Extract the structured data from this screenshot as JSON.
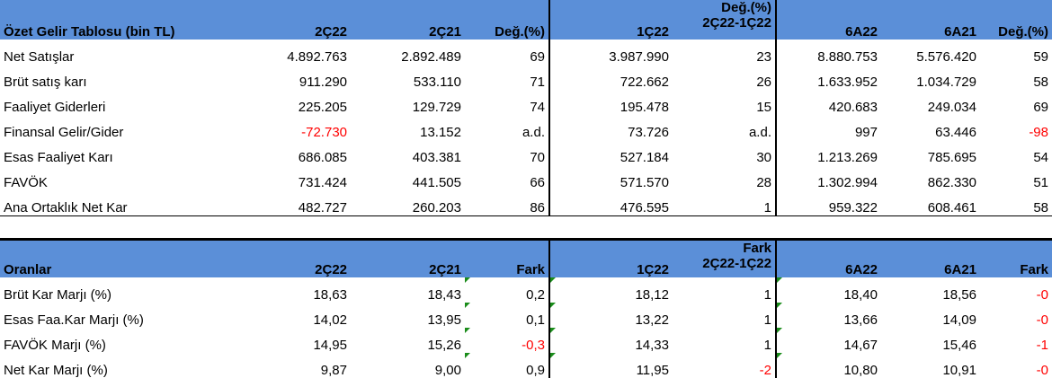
{
  "table1": {
    "headers": [
      "Özet Gelir Tablosu (bin TL)",
      "2Ç22",
      "2Ç21",
      "Değ.(%)",
      "1Ç22",
      "Değ.(%)|2Ç22-1Ç22",
      "6A22",
      "6A21",
      "Değ.(%)"
    ],
    "rows": [
      [
        "Net Satışlar",
        "4.892.763",
        "2.892.489",
        "69",
        "3.987.990",
        "23",
        "8.880.753",
        "5.576.420",
        "59"
      ],
      [
        "Brüt satış karı",
        "911.290",
        "533.110",
        "71",
        "722.662",
        "26",
        "1.633.952",
        "1.034.729",
        "58"
      ],
      [
        "Faaliyet Giderleri",
        "225.205",
        "129.729",
        "74",
        "195.478",
        "15",
        "420.683",
        "249.034",
        "69"
      ],
      [
        "Finansal Gelir/Gider",
        "-72.730",
        "13.152",
        "a.d.",
        "73.726",
        "a.d.",
        "997",
        "63.446",
        "-98"
      ],
      [
        "Esas Faaliyet Karı",
        "686.085",
        "403.381",
        "70",
        "527.184",
        "30",
        "1.213.269",
        "785.695",
        "54"
      ],
      [
        "FAVÖK",
        "731.424",
        "441.505",
        "66",
        "571.570",
        "28",
        "1.302.994",
        "862.330",
        "51"
      ],
      [
        "Ana Ortaklık Net Kar",
        "482.727",
        "260.203",
        "86",
        "476.595",
        "1",
        "959.322",
        "608.461",
        "58"
      ]
    ]
  },
  "table2": {
    "headers": [
      "Oranlar",
      "2Ç22",
      "2Ç21",
      "Fark",
      "1Ç22",
      "Fark|2Ç22-1Ç22",
      "6A22",
      "6A21",
      "Fark"
    ],
    "rows": [
      [
        "Brüt Kar Marjı (%)",
        "18,63",
        "18,43",
        "0,2",
        "18,12",
        "1",
        "18,40",
        "18,56",
        "-0"
      ],
      [
        "Esas Faa.Kar Marjı (%)",
        "14,02",
        "13,95",
        "0,1",
        "13,22",
        "1",
        "13,66",
        "14,09",
        "-0"
      ],
      [
        "FAVÖK Marjı (%)",
        "14,95",
        "15,26",
        "-0,3",
        "14,33",
        "1",
        "14,67",
        "15,46",
        "-1"
      ],
      [
        "Net Kar Marjı (%)",
        "9,87",
        "9,00",
        "0,9",
        "11,95",
        "-2",
        "10,80",
        "10,91",
        "-0"
      ]
    ]
  },
  "colors": {
    "header_bg": "#5b8fd8",
    "negative": "#ff0000",
    "flag": "#1a8c1a"
  }
}
